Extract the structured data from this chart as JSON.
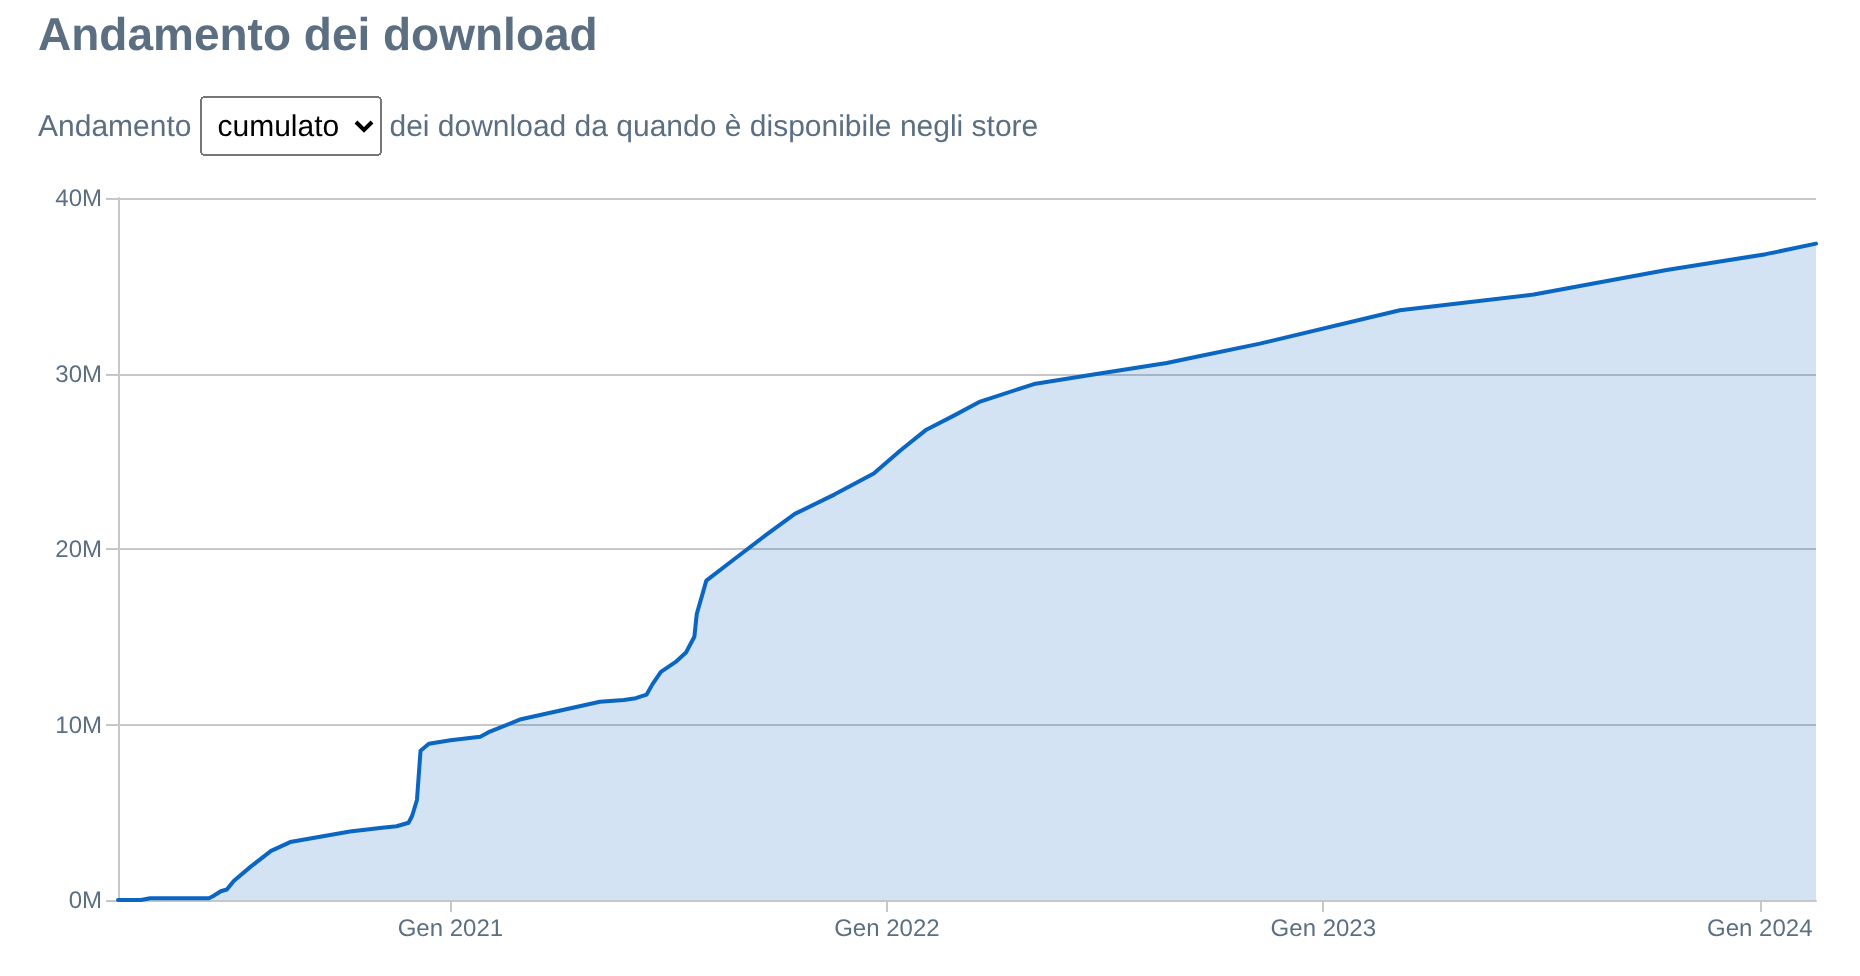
{
  "chart_data": {
    "type": "area",
    "title": "Andamento dei download",
    "annotations": [
      "Andamento",
      "cumulato",
      "dei download da quando è disponibile negli store"
    ],
    "x": [
      "2020-03-29",
      "2020-04-17",
      "2020-04-25",
      "2020-06-13",
      "2020-06-16",
      "2020-06-23",
      "2020-06-28",
      "2020-07-04",
      "2020-07-18",
      "2020-08-04",
      "2020-08-20",
      "2020-09-14",
      "2020-10-09",
      "2020-11-03",
      "2020-11-17",
      "2020-11-27",
      "2020-11-30",
      "2020-12-04",
      "2020-12-07",
      "2020-12-14",
      "2021-01-01",
      "2021-01-26",
      "2021-02-03",
      "2021-03-01",
      "2021-04-03",
      "2021-05-06",
      "2021-05-26",
      "2021-06-05",
      "2021-06-14",
      "2021-06-19",
      "2021-06-26",
      "2021-07-09",
      "2021-07-17",
      "2021-07-24",
      "2021-07-26",
      "2021-08-03",
      "2021-08-26",
      "2021-09-22",
      "2021-10-16",
      "2021-11-18",
      "2021-12-21",
      "2022-01-12",
      "2022-02-03",
      "2022-02-26",
      "2022-03-20",
      "2022-05-04",
      "2022-06-28",
      "2022-08-23",
      "2022-09-20",
      "2022-11-09",
      "2023-03-06",
      "2023-06-26",
      "2023-10-15",
      "2024-01-06",
      "2024-02-17"
    ],
    "series": [
      {
        "color": "#0b66c3",
        "values": [
          0,
          0,
          100000,
          100000,
          200000,
          500000,
          600000,
          1100000,
          1900000,
          2800000,
          3300000,
          3600000,
          3900000,
          4100000,
          4200000,
          4400000,
          4800000,
          5700000,
          8500000,
          8900000,
          9100000,
          9300000,
          9600000,
          10300000,
          10800000,
          11300000,
          11400000,
          11500000,
          11700000,
          12300000,
          13000000,
          13600000,
          14100000,
          15000000,
          16300000,
          18200000,
          19400000,
          20800000,
          22000000,
          23100000,
          24300000,
          25600000,
          26800000,
          27600000,
          28400000,
          29400000,
          30000000,
          30600000,
          31000000,
          31700000,
          33600000,
          34500000,
          35900000,
          36800000,
          37400000
        ]
      }
    ],
    "xlim": [
      "2020-03-29",
      "2024-02-17"
    ],
    "xticks": [
      {
        "value": "2021-01-01",
        "label": "Gen 2021"
      },
      {
        "value": "2022-01-01",
        "label": "Gen 2022"
      },
      {
        "value": "2023-01-01",
        "label": "Gen 2023"
      },
      {
        "value": "2024-01-01",
        "label": "Gen 2024"
      }
    ],
    "ylim": [
      0,
      40000000
    ],
    "yticks": [
      {
        "value": 0,
        "label": "0M"
      },
      {
        "value": 10000000,
        "label": "10M"
      },
      {
        "value": 20000000,
        "label": "20M"
      },
      {
        "value": 30000000,
        "label": "30M"
      },
      {
        "value": 40000000,
        "label": "40M"
      }
    ],
    "grid": "y",
    "marker": "none",
    "line_style": "solid"
  }
}
